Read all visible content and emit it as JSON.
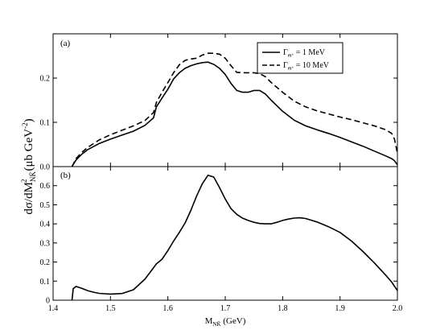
{
  "chart_data": [
    {
      "type": "line",
      "panel_label": "(a)",
      "xlim": [
        1.4,
        2.0
      ],
      "ylim": [
        0,
        0.3
      ],
      "yticks": [
        0,
        0.1,
        0.2
      ],
      "ytick_labels": [
        "0.0",
        "0.1",
        "0.2"
      ],
      "legend_position": "top-right",
      "series": [
        {
          "name": "Γ_Θ+ = 1 MeV",
          "style": "solid",
          "x": [
            1.433,
            1.44,
            1.45,
            1.46,
            1.48,
            1.5,
            1.52,
            1.54,
            1.56,
            1.575,
            1.58,
            1.59,
            1.6,
            1.61,
            1.62,
            1.63,
            1.64,
            1.65,
            1.66,
            1.67,
            1.68,
            1.69,
            1.7,
            1.71,
            1.72,
            1.73,
            1.74,
            1.75,
            1.76,
            1.77,
            1.78,
            1.8,
            1.82,
            1.84,
            1.86,
            1.88,
            1.9,
            1.92,
            1.94,
            1.96,
            1.98,
            1.99,
            1.995,
            2.0
          ],
          "y": [
            0.0,
            0.015,
            0.028,
            0.038,
            0.052,
            0.062,
            0.071,
            0.08,
            0.093,
            0.11,
            0.135,
            0.155,
            0.175,
            0.198,
            0.212,
            0.222,
            0.228,
            0.232,
            0.235,
            0.236,
            0.231,
            0.222,
            0.208,
            0.188,
            0.172,
            0.168,
            0.168,
            0.172,
            0.172,
            0.164,
            0.15,
            0.125,
            0.105,
            0.092,
            0.083,
            0.075,
            0.066,
            0.056,
            0.046,
            0.035,
            0.024,
            0.018,
            0.013,
            0.004
          ]
        },
        {
          "name": "Γ_Θ+ = 10 MeV",
          "style": "dashed",
          "x": [
            1.433,
            1.44,
            1.45,
            1.46,
            1.48,
            1.5,
            1.52,
            1.54,
            1.56,
            1.575,
            1.58,
            1.59,
            1.6,
            1.61,
            1.62,
            1.63,
            1.64,
            1.65,
            1.66,
            1.67,
            1.68,
            1.69,
            1.7,
            1.71,
            1.72,
            1.73,
            1.74,
            1.75,
            1.76,
            1.77,
            1.78,
            1.8,
            1.82,
            1.84,
            1.86,
            1.88,
            1.9,
            1.92,
            1.94,
            1.96,
            1.98,
            1.99,
            1.995,
            2.0
          ],
          "y": [
            0.0,
            0.018,
            0.032,
            0.043,
            0.06,
            0.072,
            0.082,
            0.092,
            0.104,
            0.122,
            0.145,
            0.168,
            0.19,
            0.212,
            0.23,
            0.24,
            0.243,
            0.245,
            0.252,
            0.256,
            0.256,
            0.254,
            0.245,
            0.228,
            0.213,
            0.212,
            0.212,
            0.212,
            0.21,
            0.203,
            0.19,
            0.168,
            0.148,
            0.135,
            0.126,
            0.119,
            0.112,
            0.106,
            0.099,
            0.092,
            0.083,
            0.075,
            0.062,
            0.03
          ]
        }
      ]
    },
    {
      "type": "line",
      "panel_label": "(b)",
      "xlim": [
        1.4,
        2.0
      ],
      "ylim": [
        0,
        0.7
      ],
      "yticks": [
        0,
        0.1,
        0.2,
        0.3,
        0.4,
        0.5,
        0.6
      ],
      "ytick_labels": [
        "0",
        "0.1",
        "0.2",
        "0.3",
        "0.4",
        "0.5",
        "0.6"
      ],
      "series": [
        {
          "style": "solid",
          "x": [
            1.433,
            1.435,
            1.44,
            1.45,
            1.46,
            1.47,
            1.48,
            1.5,
            1.52,
            1.54,
            1.56,
            1.57,
            1.58,
            1.59,
            1.6,
            1.61,
            1.62,
            1.63,
            1.64,
            1.65,
            1.66,
            1.67,
            1.68,
            1.69,
            1.7,
            1.71,
            1.72,
            1.73,
            1.74,
            1.75,
            1.76,
            1.77,
            1.78,
            1.79,
            1.8,
            1.81,
            1.82,
            1.83,
            1.84,
            1.86,
            1.88,
            1.9,
            1.92,
            1.94,
            1.96,
            1.98,
            1.99,
            2.0
          ],
          "y": [
            0.0,
            0.06,
            0.072,
            0.062,
            0.05,
            0.042,
            0.036,
            0.032,
            0.035,
            0.055,
            0.11,
            0.15,
            0.19,
            0.215,
            0.26,
            0.31,
            0.355,
            0.405,
            0.47,
            0.545,
            0.61,
            0.655,
            0.645,
            0.59,
            0.53,
            0.48,
            0.45,
            0.43,
            0.418,
            0.408,
            0.402,
            0.4,
            0.4,
            0.408,
            0.418,
            0.425,
            0.43,
            0.432,
            0.428,
            0.41,
            0.385,
            0.355,
            0.31,
            0.255,
            0.195,
            0.13,
            0.095,
            0.05
          ]
        }
      ]
    }
  ],
  "y_axis_title": {
    "main": "dσ/dM",
    "sub": "NK̄",
    "sup": "2",
    "units_a": "(μb GeV",
    "units_sup": "-2",
    "units_b": ")"
  },
  "x_axis_title": {
    "main": "M",
    "sub": "NK̄",
    "units": " (GeV)"
  },
  "x_ticks": [
    1.4,
    1.5,
    1.6,
    1.7,
    1.8,
    1.9,
    2.0
  ],
  "x_tick_labels": [
    "1.4",
    "1.5",
    "1.6",
    "1.7",
    "1.8",
    "1.9",
    "2.0"
  ],
  "legend": {
    "gamma_symbol": "Γ",
    "gamma_sub": "Θ⁺",
    "entry1_value": " = 1 MeV",
    "entry2_value": " = 10 MeV"
  }
}
